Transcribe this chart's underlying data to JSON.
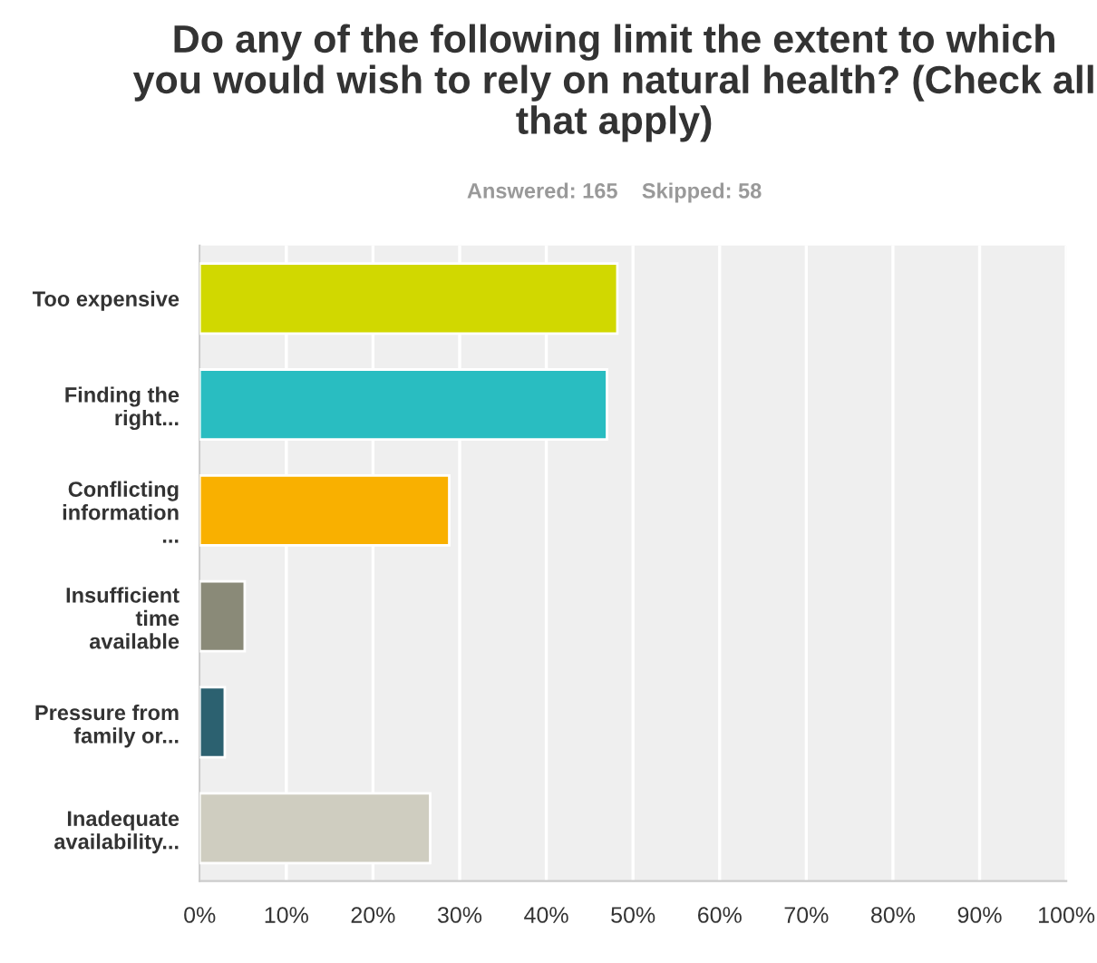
{
  "chart_data": {
    "type": "bar",
    "orientation": "horizontal",
    "title": "Do any of the following limit the extent to which you would wish to rely on natural health? (Check all that apply)",
    "subtitle": "Answered: 165    Skipped: 58",
    "categories": [
      "Too expensive",
      "Finding the right...",
      "Conflicting information ...",
      "Insufficient time available",
      "Pressure from family or...",
      "Inadequate availability..."
    ],
    "values": [
      48.2,
      47.0,
      28.8,
      5.2,
      2.9,
      26.6
    ],
    "colors": [
      "#d1d800",
      "#29bdc1",
      "#f9b000",
      "#8a8a78",
      "#2c6170",
      "#cfcdc0"
    ],
    "xlim": [
      0,
      100
    ],
    "xticks": [
      {
        "value": 0,
        "label": "0%"
      },
      {
        "value": 10,
        "label": "10%"
      },
      {
        "value": 20,
        "label": "20%"
      },
      {
        "value": 30,
        "label": "30%"
      },
      {
        "value": 40,
        "label": "40%"
      },
      {
        "value": 50,
        "label": "50%"
      },
      {
        "value": 60,
        "label": "60%"
      },
      {
        "value": 70,
        "label": "70%"
      },
      {
        "value": 80,
        "label": "80%"
      },
      {
        "value": 90,
        "label": "90%"
      },
      {
        "value": 100,
        "label": "100%"
      }
    ],
    "grid": "x"
  }
}
